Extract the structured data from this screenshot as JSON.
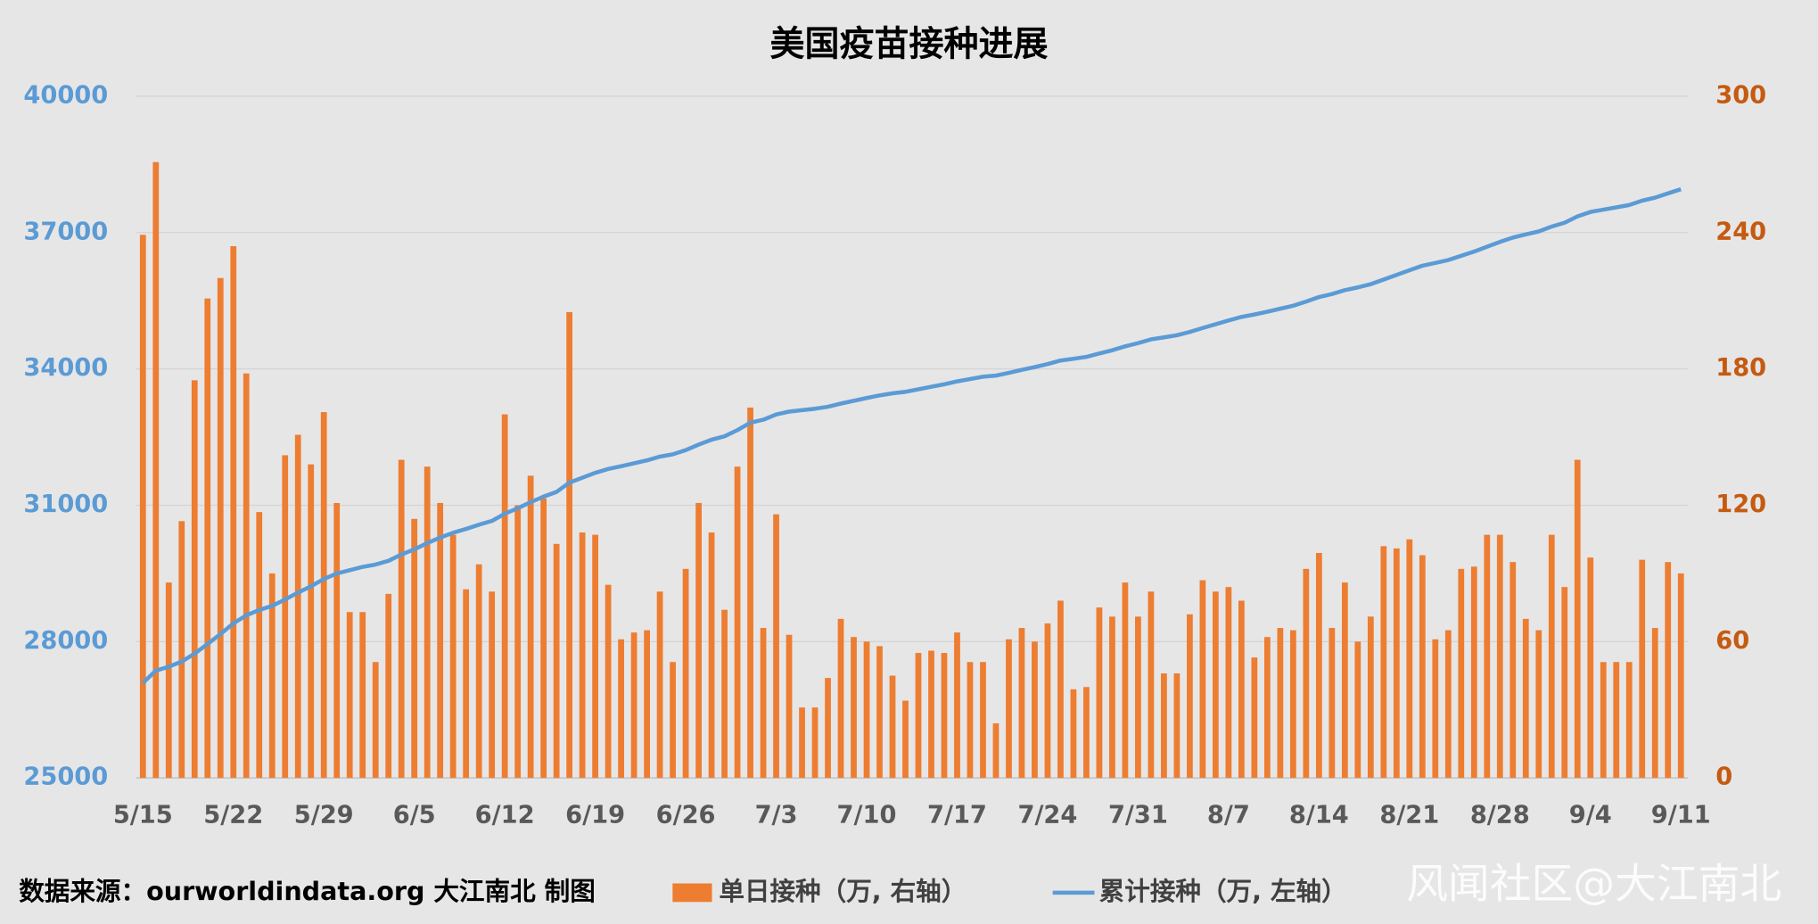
{
  "chart_data": {
    "type": "bar_line",
    "title": "美国疫苗接种进展",
    "source": "数据来源：ourworldindata.org 大江南北 制图",
    "watermark": "风闻社区@大江南北",
    "categories": [
      "5/15",
      null,
      null,
      null,
      null,
      null,
      null,
      "5/22",
      null,
      null,
      null,
      null,
      null,
      null,
      "5/29",
      null,
      null,
      null,
      null,
      null,
      null,
      "6/5",
      null,
      null,
      null,
      null,
      null,
      null,
      "6/12",
      null,
      null,
      null,
      null,
      null,
      null,
      "6/19",
      null,
      null,
      null,
      null,
      null,
      null,
      "6/26",
      null,
      null,
      null,
      null,
      null,
      null,
      "7/3",
      null,
      null,
      null,
      null,
      null,
      null,
      "7/10",
      null,
      null,
      null,
      null,
      null,
      null,
      "7/17",
      null,
      null,
      null,
      null,
      null,
      null,
      "7/24",
      null,
      null,
      null,
      null,
      null,
      null,
      "7/31",
      null,
      null,
      null,
      null,
      null,
      null,
      "8/7",
      null,
      null,
      null,
      null,
      null,
      null,
      "8/14",
      null,
      null,
      null,
      null,
      null,
      null,
      "8/21",
      null,
      null,
      null,
      null,
      null,
      null,
      "8/28",
      null,
      null,
      null,
      null,
      null,
      null,
      "9/4",
      null,
      null,
      null,
      null,
      null,
      null,
      "9/11"
    ],
    "series": [
      {
        "name": "单日接种（万, 右轴）",
        "color": "#ed7d31",
        "kind": "bar",
        "axis": "y2",
        "values": [
          239,
          271,
          86,
          113,
          175,
          211,
          220,
          234,
          178,
          117,
          90,
          142,
          151,
          138,
          161,
          121,
          73,
          73,
          51,
          81,
          140,
          114,
          137,
          121,
          107,
          83,
          94,
          82,
          160,
          120,
          133,
          123,
          103,
          205,
          108,
          107,
          85,
          61,
          64,
          65,
          82,
          51,
          92,
          121,
          108,
          74,
          137,
          163,
          66,
          116,
          63,
          31,
          31,
          44,
          70,
          62,
          60,
          58,
          45,
          34,
          55,
          56,
          55,
          64,
          51,
          51,
          24,
          61,
          66,
          60,
          68,
          78,
          39,
          40,
          75,
          71,
          86,
          71,
          82,
          46,
          46,
          72,
          87,
          82,
          84,
          78,
          53,
          62,
          66,
          65,
          92,
          99,
          66,
          86,
          60,
          71,
          102,
          101,
          105,
          98,
          61,
          65,
          92,
          93,
          107,
          107,
          95,
          70,
          65,
          107,
          84,
          140,
          97,
          51,
          51,
          51,
          96,
          66,
          95,
          90
        ]
      },
      {
        "name": "累计接种（万, 左轴）",
        "color": "#5b9bd5",
        "kind": "line",
        "axis": "y",
        "values": [
          27090,
          27361,
          27447,
          27560,
          27735,
          27946,
          28166,
          28400,
          28578,
          28695,
          28785,
          28927,
          29078,
          29216,
          29377,
          29498,
          29571,
          29644,
          29695,
          29776,
          29916,
          30030,
          30167,
          30288,
          30395,
          30478,
          30572,
          30654,
          30814,
          30934,
          31067,
          31190,
          31293,
          31498,
          31606,
          31713,
          31798,
          31859,
          31923,
          31988,
          32070,
          32121,
          32213,
          32334,
          32442,
          32516,
          32653,
          32816,
          32882,
          32998,
          33061,
          33092,
          33123,
          33167,
          33237,
          33299,
          33359,
          33417,
          33462,
          33496,
          33551,
          33607,
          33662,
          33726,
          33777,
          33828,
          33852,
          33913,
          33979,
          34039,
          34107,
          34185,
          34224,
          34264,
          34339,
          34410,
          34496,
          34567,
          34649,
          34695,
          34741,
          34813,
          34900,
          34982,
          35066,
          35144,
          35197,
          35259,
          35325,
          35390,
          35482,
          35581,
          35647,
          35733,
          35793,
          35864,
          35966,
          36067,
          36172,
          36270,
          36331,
          36396,
          36488,
          36581,
          36688,
          36795,
          36890,
          36960,
          37025,
          37132,
          37216,
          37356,
          37453,
          37504,
          37555,
          37606,
          37702,
          37768,
          37863,
          37953
        ]
      }
    ],
    "ylim": [
      25000,
      40000
    ],
    "yticks": [
      25000,
      28000,
      31000,
      34000,
      37000,
      40000
    ],
    "y2lim": [
      0,
      300
    ],
    "y2ticks": [
      0,
      60,
      120,
      180,
      240,
      300
    ],
    "y_color": "#5b9bd5",
    "y2_color": "#c55a11",
    "grid": true
  }
}
